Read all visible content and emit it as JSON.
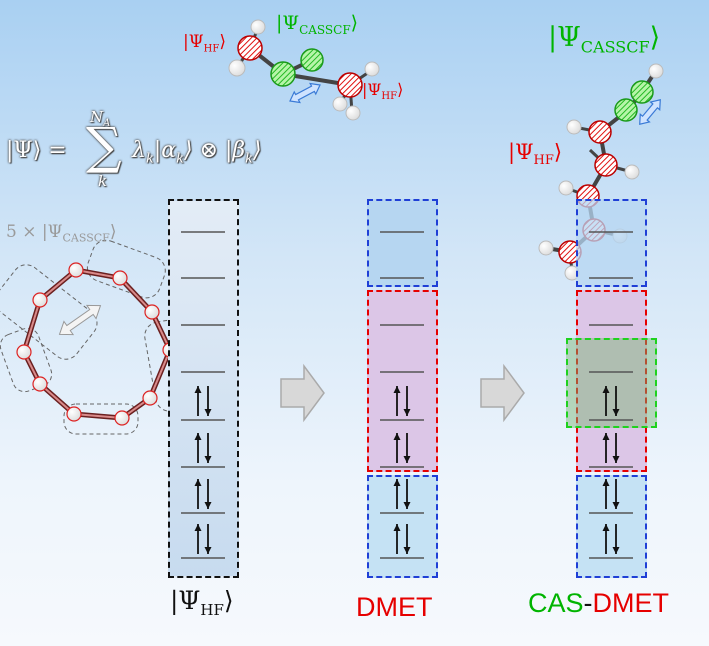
{
  "labels": {
    "psi_hf_left": "|Ψ",
    "psi_hf_sub": "HF",
    "casscf_prefix": "|Ψ",
    "casscf_sub": "CASSCF",
    "ket_close": "⟩",
    "five_times": "5 × |Ψ",
    "formula_lhs": "|Ψ⟩ =",
    "formula_sum": "∑",
    "formula_upper": "N",
    "formula_upper_sub": "A",
    "formula_lower": "k",
    "formula_rhs": "λ",
    "formula_rhs_k": "k",
    "formula_alpha": "|α",
    "formula_otimes": "⟩ ⊗ |β",
    "formula_end": "⟩",
    "bottom_hf": "|Ψ",
    "dmet": "DMET",
    "cas": "CAS",
    "dash": "-",
    "cas_dmet_dmet": "DMET"
  },
  "colors": {
    "red": "#e60000",
    "green": "#00b400",
    "blue": "#1f3fd6",
    "black": "#111111",
    "grey": "#9a9a9a"
  },
  "icons": [
    "right-arrow-icon",
    "double-arrow-icon",
    "molecule-icon",
    "up-down-electron-pair-icon"
  ]
}
